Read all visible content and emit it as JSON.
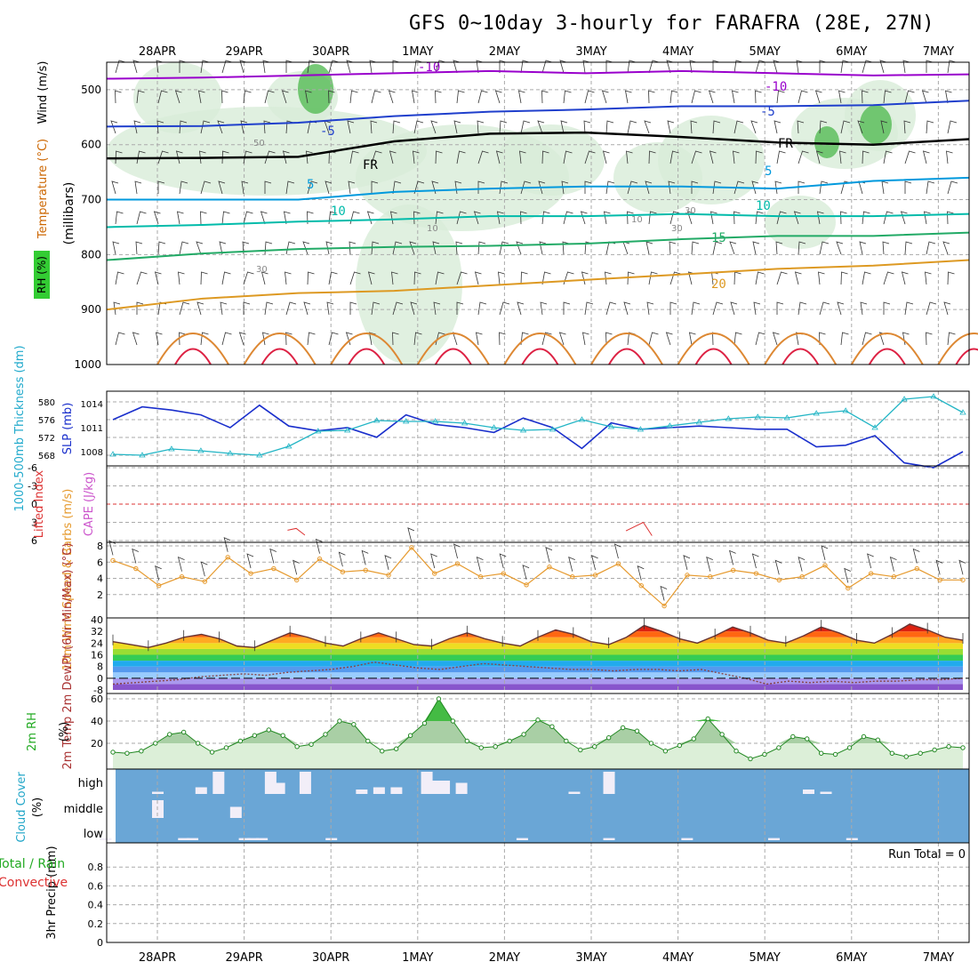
{
  "title": "GFS 0~10day 3-hourly for FARAFRA (28E, 27N)",
  "chart_data": [
    {
      "panel": "upper-air",
      "type": "heatmap",
      "x_dates": [
        "28APR",
        "29APR",
        "30APR",
        "1MAY",
        "2MAY",
        "3MAY",
        "4MAY",
        "5MAY",
        "6MAY",
        "7MAY"
      ],
      "ylabel": "(millibars)",
      "yticks": [
        500,
        600,
        700,
        800,
        900,
        1000
      ],
      "ylim": [
        450,
        1000
      ],
      "legend_labels": [
        "RH (%)",
        "Temperature (°C)",
        "Wind (m/s)"
      ],
      "freezing_level_label": "FR",
      "rh_contour_labels": [
        "30",
        "50",
        "10",
        "30",
        "10",
        "30"
      ],
      "isotherms": [
        {
          "label": "-10",
          "color": "#9900cc",
          "values": [
            480,
            478,
            474,
            470,
            466,
            470,
            466,
            470,
            474,
            472
          ]
        },
        {
          "label": "-5",
          "color": "#1f3fcc",
          "values": [
            567,
            566,
            560,
            548,
            540,
            536,
            530,
            530,
            528,
            520
          ]
        },
        {
          "label": "FR",
          "color": "#000000",
          "values": [
            625,
            624,
            622,
            594,
            580,
            578,
            586,
            596,
            600,
            590
          ]
        },
        {
          "label": "5",
          "color": "#0099dd",
          "values": [
            700,
            700,
            700,
            686,
            680,
            676,
            676,
            680,
            666,
            660
          ]
        },
        {
          "label": "10",
          "color": "#00bbaa",
          "values": [
            750,
            746,
            740,
            736,
            730,
            730,
            726,
            730,
            730,
            726
          ]
        },
        {
          "label": "15",
          "color": "#22aa66",
          "values": [
            810,
            798,
            790,
            786,
            784,
            780,
            772,
            766,
            766,
            760
          ]
        },
        {
          "label": "20",
          "color": "#dd9922",
          "values": [
            900,
            880,
            870,
            866,
            856,
            846,
            836,
            826,
            820,
            810
          ]
        }
      ],
      "isotherm_labels_shown": [
        "-10",
        "-10",
        "-5",
        "-5",
        "FR",
        "FR",
        "5",
        "5",
        "10",
        "10",
        "15",
        "20"
      ]
    },
    {
      "panel": "pressure-thickness",
      "type": "line",
      "left_label": "1000-500mb Thickness (dm)",
      "right_label": "SLP (mb)",
      "left_ticks": [
        568,
        572,
        576,
        580
      ],
      "right_ticks": [
        1008,
        1011,
        1014
      ],
      "series": [
        {
          "name": "SLP (mb)",
          "axis": "right",
          "values": [
            1012.0,
            1013.6,
            1013.2,
            1012.6,
            1011.0,
            1013.8,
            1011.2,
            1010.6,
            1011.0,
            1009.8,
            1012.6,
            1011.4,
            1011.0,
            1010.4,
            1012.2,
            1011.0,
            1008.4,
            1011.6,
            1010.8,
            1011.0,
            1011.2,
            1011.0,
            1010.8,
            1010.8,
            1008.6,
            1008.8,
            1010.0,
            1006.6,
            1006.0,
            1008.0
          ]
        },
        {
          "name": "1000-500mb Thickness (dm)",
          "axis": "left",
          "values": [
            568.2,
            568.0,
            569.4,
            569.0,
            568.4,
            568.0,
            570.0,
            573.4,
            573.6,
            575.8,
            575.6,
            575.6,
            575.2,
            574.2,
            573.6,
            573.8,
            576.0,
            574.4,
            573.8,
            574.6,
            575.4,
            576.2,
            576.6,
            576.4,
            577.4,
            578.0,
            574.2,
            580.6,
            581.2,
            577.6
          ]
        }
      ]
    },
    {
      "panel": "cape-lifted-index",
      "type": "line",
      "left_label": "Lifted Index",
      "right_label": "CAPE (J/kg)",
      "yticks": [
        "-6",
        "-3",
        "0",
        "3",
        "6"
      ],
      "reference_line": 0,
      "series": [
        {
          "name": "Lifted Index",
          "values": [
            {
              "x": 2.5,
              "y": 4.3
            },
            {
              "x": 2.6,
              "y": 4.0
            },
            {
              "x": 6.4,
              "y": 4.4
            },
            {
              "x": 6.6,
              "y": 3.0
            }
          ]
        }
      ]
    },
    {
      "panel": "10m-wind",
      "type": "line",
      "label": "10m Wind Speed & Barbs (m/s)",
      "yticks": [
        2,
        4,
        6,
        8
      ],
      "ylim": [
        0,
        8
      ],
      "series": [
        {
          "name": "Speed",
          "values": [
            6.2,
            5.2,
            3.1,
            4.2,
            3.6,
            6.6,
            4.6,
            5.2,
            3.8,
            6.4,
            4.8,
            5.0,
            4.4,
            7.8,
            4.6,
            5.8,
            4.2,
            4.6,
            3.2,
            5.4,
            4.2,
            4.4,
            5.8,
            3.1,
            0.6,
            4.4,
            4.2,
            5.0,
            4.6,
            3.8,
            4.2,
            5.6,
            2.8,
            4.6,
            4.2,
            5.2,
            3.8,
            3.8
          ]
        }
      ]
    },
    {
      "panel": "temperature",
      "type": "area",
      "label": "2m Temp 2m DewPt (6hr Min/Max) (°C)",
      "yticks": [
        -8,
        0,
        8,
        16,
        24,
        32,
        40
      ],
      "ylim": [
        -8,
        40
      ],
      "series": [
        {
          "name": "2m Temp",
          "values": [
            25,
            23,
            21,
            24,
            28,
            30,
            27,
            22,
            21,
            26,
            31,
            28,
            24,
            22,
            27,
            31,
            27,
            23,
            22,
            27,
            31,
            27,
            24,
            22,
            28,
            33,
            30,
            25,
            23,
            28,
            36,
            32,
            27,
            24,
            29,
            35,
            31,
            26,
            24,
            29,
            35,
            31,
            26,
            24,
            30,
            37,
            33,
            28,
            26
          ]
        },
        {
          "name": "2m DewPt",
          "values": [
            -4,
            -3,
            -2,
            -1,
            1,
            2,
            3,
            2,
            4,
            5,
            6,
            8,
            11,
            9,
            7,
            6,
            8,
            10,
            9,
            8,
            7,
            6,
            6,
            5,
            6,
            6,
            5,
            6,
            3,
            0,
            -4,
            -2,
            -3,
            -2,
            -3,
            -2,
            -2,
            -1,
            -1,
            0
          ]
        }
      ]
    },
    {
      "panel": "relative-humidity",
      "type": "area",
      "label": "2m RH (%)",
      "yticks": [
        20,
        40,
        60
      ],
      "ylim": [
        0,
        60
      ],
      "series": [
        {
          "name": "2m RH",
          "values": [
            12,
            11,
            13,
            20,
            28,
            30,
            20,
            12,
            16,
            22,
            27,
            32,
            27,
            17,
            19,
            28,
            40,
            37,
            22,
            13,
            15,
            27,
            38,
            60,
            40,
            22,
            16,
            17,
            22,
            28,
            41,
            35,
            22,
            14,
            17,
            25,
            34,
            31,
            20,
            13,
            18,
            24,
            42,
            28,
            13,
            6,
            10,
            16,
            26,
            24,
            11,
            10,
            16,
            26,
            23,
            11,
            8,
            11,
            14,
            17,
            16
          ]
        }
      ]
    },
    {
      "panel": "cloud-cover",
      "type": "bar",
      "label": "Cloud Cover (%)",
      "levels": [
        "high",
        "middle",
        "low"
      ],
      "series": [
        {
          "name": "high",
          "values": [
            {
              "x": 1.0,
              "v": 0.1
            },
            {
              "x": 1.5,
              "v": 0.3
            },
            {
              "x": 1.7,
              "v": 1.0
            },
            {
              "x": 2.3,
              "v": 1.0
            },
            {
              "x": 2.4,
              "v": 0.5
            },
            {
              "x": 2.7,
              "v": 1.0
            },
            {
              "x": 3.35,
              "v": 0.2
            },
            {
              "x": 3.55,
              "v": 0.3
            },
            {
              "x": 3.75,
              "v": 0.3
            },
            {
              "x": 4.1,
              "v": 1.0
            },
            {
              "x": 4.2,
              "v": 0.6
            },
            {
              "x": 4.3,
              "v": 0.6
            },
            {
              "x": 4.5,
              "v": 0.5
            },
            {
              "x": 5.8,
              "v": 0.1
            },
            {
              "x": 6.2,
              "v": 1.0
            },
            {
              "x": 8.5,
              "v": 0.2
            },
            {
              "x": 8.7,
              "v": 0.1
            }
          ]
        },
        {
          "name": "middle",
          "values": [
            {
              "x": 1.0,
              "v": 0.8
            },
            {
              "x": 1.9,
              "v": 0.5
            }
          ]
        },
        {
          "name": "low",
          "values": [
            {
              "x": 0.4,
              "v": 0.1
            },
            {
              "x": 1.3,
              "v": 0.1
            },
            {
              "x": 1.4,
              "v": 0.1
            },
            {
              "x": 2.0,
              "v": 0.1
            },
            {
              "x": 2.1,
              "v": 0.1
            },
            {
              "x": 2.2,
              "v": 0.1
            },
            {
              "x": 3.0,
              "v": 0.1
            },
            {
              "x": 5.2,
              "v": 0.1
            },
            {
              "x": 6.2,
              "v": 0.1
            },
            {
              "x": 7.1,
              "v": 0.1
            },
            {
              "x": 8.1,
              "v": 0.1
            },
            {
              "x": 9.0,
              "v": 0.1
            }
          ]
        }
      ]
    },
    {
      "panel": "precipitation",
      "type": "bar",
      "label": "3hr Precip (mm)",
      "legend_labels": [
        "Total / Rain",
        "Convective"
      ],
      "yticks": [
        0,
        0.2,
        0.4,
        0.6,
        0.8
      ],
      "ylim": [
        0,
        1.0
      ],
      "annotation": "Run Total = 0",
      "series": [
        {
          "name": "Total / Rain",
          "values": []
        },
        {
          "name": "Convective",
          "values": []
        }
      ]
    }
  ]
}
